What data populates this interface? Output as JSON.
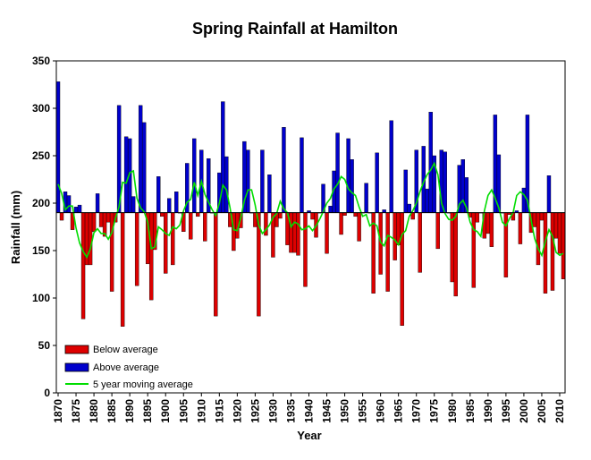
{
  "chart_data": {
    "type": "bar",
    "title": "Spring Rainfall at Hamilton",
    "xlabel": "Year",
    "ylabel": "Rainfall (mm)",
    "ylim": [
      0,
      350
    ],
    "yticks": [
      0,
      50,
      100,
      150,
      200,
      250,
      300,
      350
    ],
    "xlim": [
      1870,
      2012
    ],
    "xticks": [
      1870,
      1875,
      1880,
      1885,
      1890,
      1895,
      1900,
      1905,
      1910,
      1915,
      1920,
      1925,
      1930,
      1935,
      1940,
      1945,
      1950,
      1955,
      1960,
      1965,
      1970,
      1975,
      1980,
      1985,
      1990,
      1995,
      2000,
      2005,
      2010
    ],
    "baseline": 190,
    "grid": false,
    "legend_position": "bottom-left",
    "colors": {
      "below": "#dd0000",
      "above": "#0000cc",
      "moving_average": "#00dd00"
    },
    "legend": [
      {
        "key": "below",
        "label": "Below average"
      },
      {
        "key": "above",
        "label": "Above average"
      },
      {
        "key": "moving_average",
        "label": "5 year moving average"
      }
    ],
    "series": [
      {
        "name": "Spring rainfall",
        "x": [
          1870,
          1871,
          1872,
          1873,
          1874,
          1875,
          1876,
          1877,
          1878,
          1879,
          1880,
          1881,
          1882,
          1883,
          1884,
          1885,
          1886,
          1887,
          1888,
          1889,
          1890,
          1891,
          1892,
          1893,
          1894,
          1895,
          1896,
          1897,
          1898,
          1899,
          1900,
          1901,
          1902,
          1903,
          1904,
          1905,
          1906,
          1907,
          1908,
          1909,
          1910,
          1911,
          1912,
          1913,
          1914,
          1915,
          1916,
          1917,
          1918,
          1919,
          1920,
          1921,
          1922,
          1923,
          1924,
          1925,
          1926,
          1927,
          1928,
          1929,
          1930,
          1931,
          1932,
          1933,
          1934,
          1935,
          1936,
          1937,
          1938,
          1939,
          1940,
          1941,
          1942,
          1943,
          1944,
          1945,
          1946,
          1947,
          1948,
          1949,
          1950,
          1951,
          1952,
          1953,
          1954,
          1955,
          1956,
          1957,
          1958,
          1959,
          1960,
          1961,
          1962,
          1963,
          1964,
          1965,
          1966,
          1967,
          1968,
          1969,
          1970,
          1971,
          1972,
          1973,
          1974,
          1975,
          1976,
          1977,
          1978,
          1979,
          1980,
          1981,
          1982,
          1983,
          1984,
          1985,
          1986,
          1987,
          1988,
          1989,
          1990,
          1991,
          1992,
          1993,
          1994,
          1995,
          1996,
          1997,
          1998,
          1999,
          2000,
          2001,
          2002,
          2003,
          2004,
          2005,
          2006,
          2007,
          2008,
          2009,
          2010,
          2011
        ],
        "values": [
          328,
          182,
          212,
          208,
          172,
          196,
          198,
          78,
          135,
          135,
          170,
          210,
          175,
          165,
          180,
          107,
          180,
          303,
          70,
          270,
          268,
          207,
          113,
          303,
          285,
          136,
          98,
          151,
          228,
          186,
          126,
          205,
          135,
          212,
          190,
          170,
          242,
          162,
          268,
          186,
          256,
          160,
          247,
          190,
          81,
          232,
          307,
          249,
          175,
          150,
          163,
          174,
          265,
          256,
          190,
          175,
          81,
          256,
          166,
          230,
          143,
          175,
          184,
          280,
          156,
          148,
          148,
          145,
          269,
          112,
          192,
          183,
          164,
          190,
          220,
          147,
          197,
          234,
          274,
          167,
          187,
          268,
          246,
          186,
          160,
          190,
          221,
          190,
          105,
          253,
          125,
          193,
          107,
          287,
          140,
          156,
          71,
          235,
          199,
          183,
          256,
          127,
          260,
          215,
          296,
          250,
          152,
          256,
          254,
          190,
          117,
          102,
          240,
          246,
          227,
          185,
          111,
          180,
          190,
          163,
          168,
          154,
          293,
          251,
          190,
          122,
          188,
          182,
          192,
          157,
          216,
          293,
          169,
          175,
          135,
          182,
          105,
          229,
          108,
          163,
          147,
          120
        ]
      },
      {
        "name": "5 year moving average",
        "x": [
          1870,
          1871,
          1872,
          1873,
          1874,
          1875,
          1876,
          1877,
          1878,
          1879,
          1880,
          1881,
          1882,
          1883,
          1884,
          1885,
          1886,
          1887,
          1888,
          1889,
          1890,
          1891,
          1892,
          1893,
          1894,
          1895,
          1896,
          1897,
          1898,
          1899,
          1900,
          1901,
          1902,
          1903,
          1904,
          1905,
          1906,
          1907,
          1908,
          1909,
          1910,
          1911,
          1912,
          1913,
          1914,
          1915,
          1916,
          1917,
          1918,
          1919,
          1920,
          1921,
          1922,
          1923,
          1924,
          1925,
          1926,
          1927,
          1928,
          1929,
          1930,
          1931,
          1932,
          1933,
          1934,
          1935,
          1936,
          1937,
          1938,
          1939,
          1940,
          1941,
          1942,
          1943,
          1944,
          1945,
          1946,
          1947,
          1948,
          1949,
          1950,
          1951,
          1952,
          1953,
          1954,
          1955,
          1956,
          1957,
          1958,
          1959,
          1960,
          1961,
          1962,
          1963,
          1964,
          1965,
          1966,
          1967,
          1968,
          1969,
          1970,
          1971,
          1972,
          1973,
          1974,
          1975,
          1976,
          1977,
          1978,
          1979,
          1980,
          1981,
          1982,
          1983,
          1984,
          1985,
          1986,
          1987,
          1988,
          1989,
          1990,
          1991,
          1992,
          1993,
          1994,
          1995,
          1996,
          1997,
          1998,
          1999,
          2000,
          2001,
          2002,
          2003,
          2004,
          2005,
          2006,
          2007,
          2008,
          2009,
          2010,
          2011
        ],
        "values": [
          220,
          210,
          193,
          197,
          197,
          174,
          158,
          149,
          143,
          152,
          169,
          173,
          168,
          168,
          162,
          169,
          184,
          196,
          222,
          221,
          232,
          234,
          205,
          195,
          191,
          180,
          152,
          154,
          175,
          172,
          168,
          166,
          175,
          173,
          177,
          192,
          201,
          204,
          222,
          208,
          223,
          209,
          201,
          193,
          187,
          200,
          219,
          214,
          195,
          172,
          171,
          185,
          203,
          214,
          214,
          198,
          177,
          168,
          172,
          177,
          185,
          189,
          202,
          194,
          190,
          175,
          180,
          178,
          172,
          173,
          176,
          171,
          176,
          183,
          191,
          200,
          205,
          215,
          220,
          228,
          225,
          215,
          211,
          208,
          196,
          186,
          188,
          176,
          179,
          176,
          159,
          155,
          166,
          164,
          161,
          156,
          167,
          171,
          186,
          192,
          200,
          212,
          222,
          230,
          235,
          242,
          230,
          200,
          189,
          183,
          182,
          186,
          199,
          203,
          195,
          180,
          172,
          170,
          165,
          192,
          208,
          214,
          205,
          195,
          180,
          176,
          184,
          190,
          208,
          212,
          209,
          203,
          183,
          163,
          152,
          145,
          160,
          172,
          165,
          148,
          145,
          147
        ]
      }
    ]
  }
}
